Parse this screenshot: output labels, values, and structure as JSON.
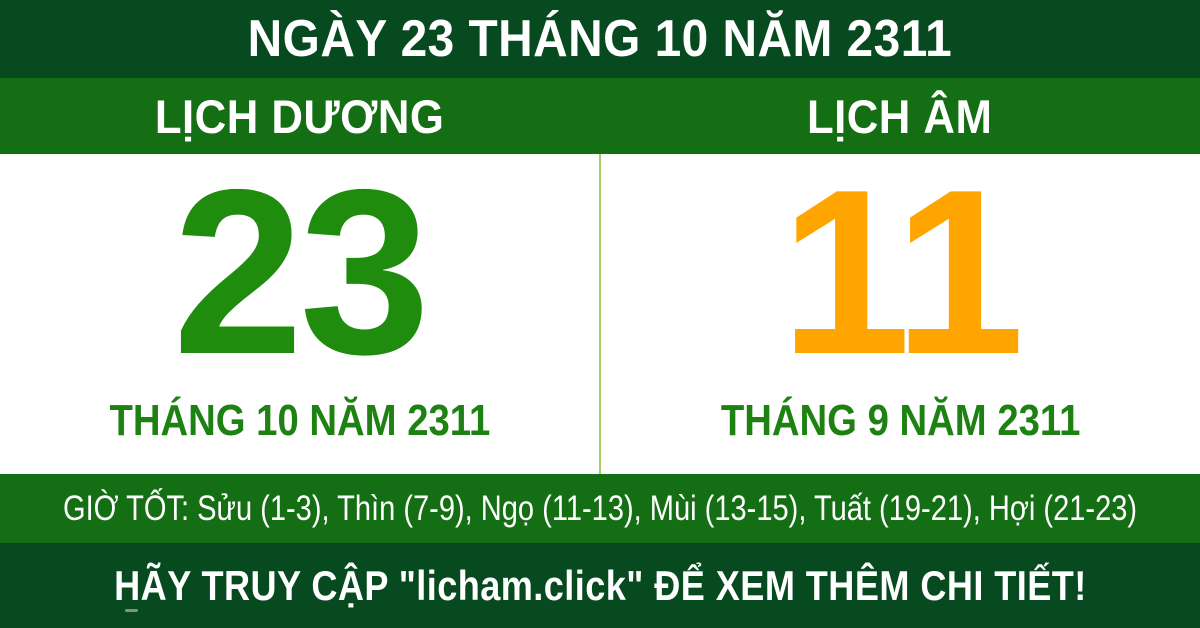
{
  "colors": {
    "dark_green": "#074a20",
    "band_green": "#146e13",
    "number_green": "#1f8c0e",
    "month_green": "#1e8212",
    "lunar_orange": "#ffa500",
    "divider_green": "#a0d063",
    "panel_white": "#ffffff",
    "text_white": "#ffffff"
  },
  "header": {
    "title": "NGÀY 23 THÁNG 10 NĂM 2311"
  },
  "tabs": {
    "solar_label": "LỊCH DƯƠNG",
    "lunar_label": "LỊCH ÂM"
  },
  "solar": {
    "day": "23",
    "month_year": "THÁNG 10 NĂM 2311"
  },
  "lunar": {
    "day": "11",
    "month_year": "THÁNG 9 NĂM 2311"
  },
  "good_hours": {
    "text": "GIỜ TỐT: Sửu (1-3), Thìn (7-9), Ngọ (11-13), Mùi (13-15), Tuất (19-21), Hợi (21-23)"
  },
  "footer": {
    "cta": "HÃY TRUY CẬP \"licham.click\" ĐỂ XEM THÊM CHI TIẾT!"
  }
}
